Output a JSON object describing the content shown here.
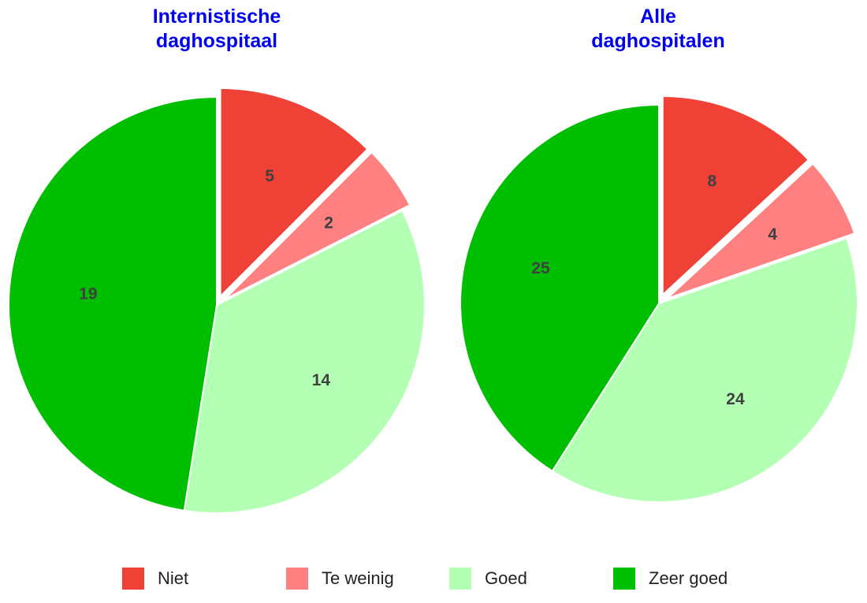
{
  "chart_data": [
    {
      "type": "pie",
      "title": "Internistische daghospitaal",
      "categories": [
        "Niet",
        "Te weinig",
        "Goed",
        "Zeer goed"
      ],
      "values": [
        5,
        2,
        14,
        19
      ],
      "colors": [
        "#ef4136",
        "#ff8080",
        "#b3ffb3",
        "#00bf00"
      ],
      "explode": [
        true,
        true,
        false,
        false
      ]
    },
    {
      "type": "pie",
      "title": "Alle daghospitalen",
      "categories": [
        "Niet",
        "Te weinig",
        "Goed",
        "Zeer goed"
      ],
      "values": [
        8,
        4,
        24,
        25
      ],
      "colors": [
        "#ef4136",
        "#ff8080",
        "#b3ffb3",
        "#00bf00"
      ],
      "explode": [
        true,
        true,
        false,
        false
      ]
    }
  ]
}
